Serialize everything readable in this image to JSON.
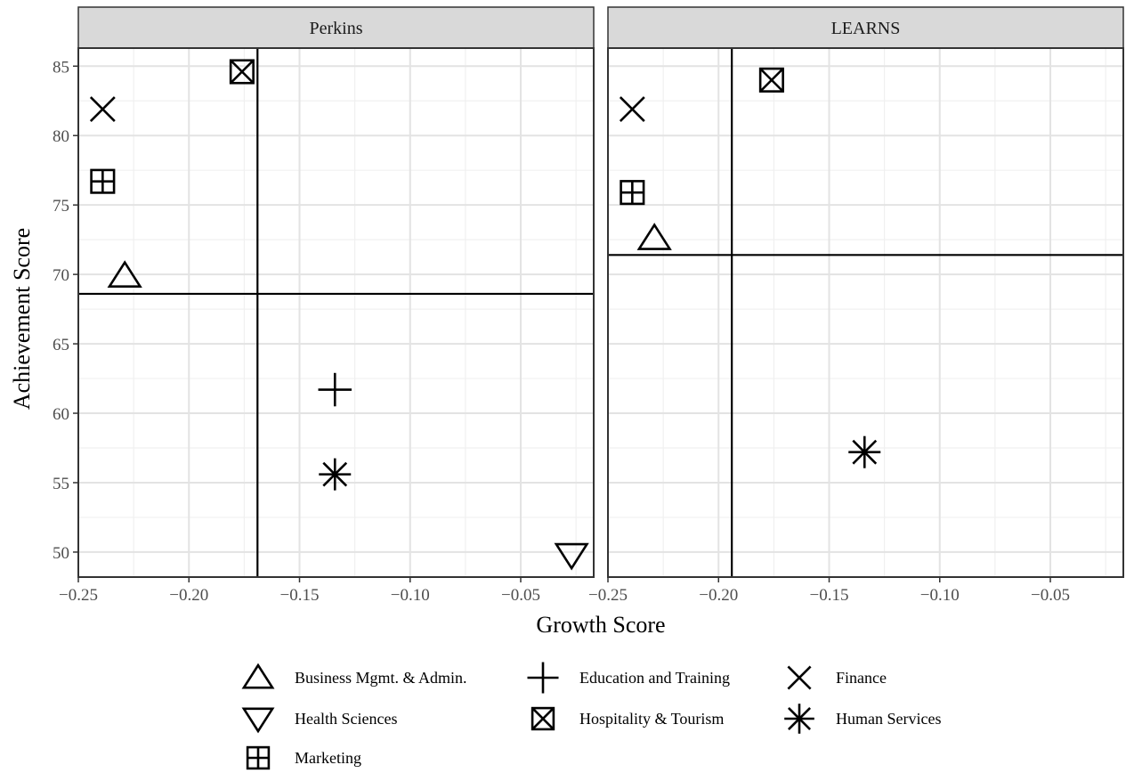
{
  "chart_data": {
    "type": "scatter",
    "xlabel": "Growth Score",
    "ylabel": "Achievement Score",
    "xlim": [
      -0.25,
      -0.017
    ],
    "ylim": [
      48.2,
      86.3
    ],
    "x_ticks": [
      {
        "v": -0.25,
        "label": "−0.25"
      },
      {
        "v": -0.2,
        "label": "−0.20"
      },
      {
        "v": -0.15,
        "label": "−0.15"
      },
      {
        "v": -0.1,
        "label": "−0.10"
      },
      {
        "v": -0.05,
        "label": "−0.05"
      }
    ],
    "y_ticks": [
      50,
      55,
      60,
      65,
      70,
      75,
      80,
      85
    ],
    "grid": true,
    "legend_position": "bottom",
    "categories": [
      {
        "name": "Business Mgmt. & Admin.",
        "shape": "triangle-up"
      },
      {
        "name": "Education and Training",
        "shape": "plus"
      },
      {
        "name": "Finance",
        "shape": "cross"
      },
      {
        "name": "Health Sciences",
        "shape": "triangle-down"
      },
      {
        "name": "Hospitality & Tourism",
        "shape": "square-cross"
      },
      {
        "name": "Human Services",
        "shape": "asterisk"
      },
      {
        "name": "Marketing",
        "shape": "square-plus"
      }
    ],
    "panels": [
      {
        "title": "Perkins",
        "vline": -0.169,
        "hline": 68.6,
        "points": [
          {
            "category": "Business Mgmt. & Admin.",
            "x": -0.229,
            "y": 69.9
          },
          {
            "category": "Education and Training",
            "x": -0.134,
            "y": 61.7
          },
          {
            "category": "Finance",
            "x": -0.239,
            "y": 81.9
          },
          {
            "category": "Health Sciences",
            "x": -0.027,
            "y": 49.8
          },
          {
            "category": "Hospitality & Tourism",
            "x": -0.176,
            "y": 84.6
          },
          {
            "category": "Human Services",
            "x": -0.134,
            "y": 55.6
          },
          {
            "category": "Marketing",
            "x": -0.239,
            "y": 76.7
          }
        ]
      },
      {
        "title": "LEARNS",
        "vline": -0.194,
        "hline": 71.4,
        "points": [
          {
            "category": "Business Mgmt. & Admin.",
            "x": -0.229,
            "y": 72.6
          },
          {
            "category": "Finance",
            "x": -0.239,
            "y": 81.9
          },
          {
            "category": "Hospitality & Tourism",
            "x": -0.176,
            "y": 84.0
          },
          {
            "category": "Human Services",
            "x": -0.134,
            "y": 57.2
          },
          {
            "category": "Marketing",
            "x": -0.239,
            "y": 75.9
          }
        ]
      }
    ]
  }
}
